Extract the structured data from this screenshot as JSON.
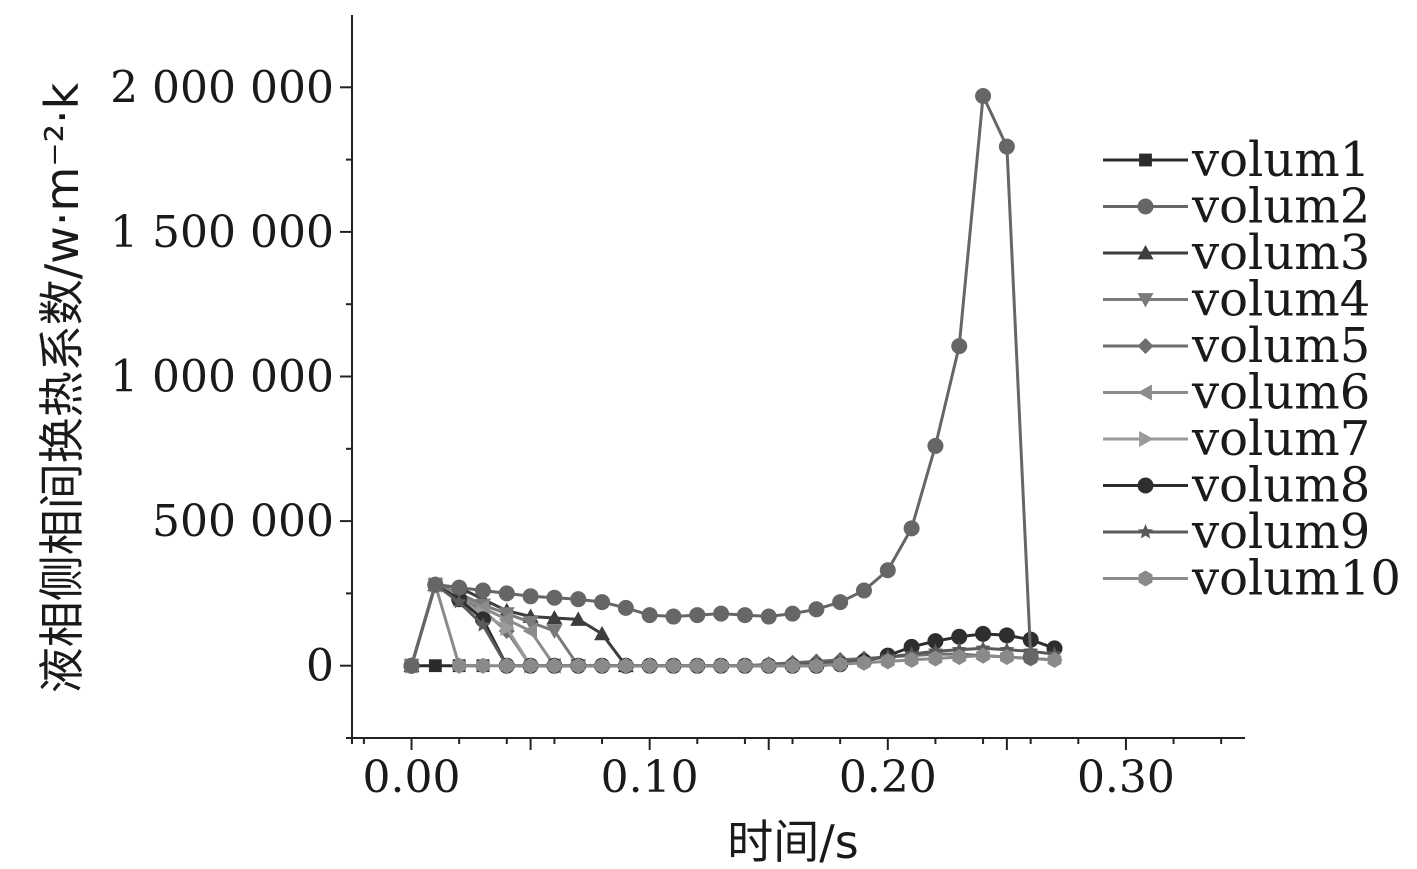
{
  "chart_data": {
    "type": "line",
    "title": "",
    "xlabel": "时间/s",
    "ylabel": "液相侧相间换热系数/w·m⁻²·k",
    "xlim": [
      -0.025,
      0.35
    ],
    "ylim": [
      -250000,
      2250000
    ],
    "x_ticks": [
      0.0,
      0.1,
      0.2,
      0.3
    ],
    "x_tick_labels": [
      "0.00",
      "0.10",
      "0.20",
      "0.30"
    ],
    "y_ticks": [
      0,
      500000,
      1000000,
      1500000,
      2000000
    ],
    "y_tick_labels": [
      "0",
      "500 000",
      "1 000 000",
      "1 500 000",
      "2 000 000"
    ],
    "legend_position": "right",
    "series": [
      {
        "name": "volum1",
        "marker": "square",
        "color": "#2b2b2b",
        "x": [
          0.0,
          0.01,
          0.02,
          0.03
        ],
        "y": [
          0,
          0,
          0,
          0
        ]
      },
      {
        "name": "volum2",
        "marker": "circle",
        "color": "#666666",
        "x": [
          0.0,
          0.01,
          0.02,
          0.03,
          0.04,
          0.05,
          0.06,
          0.07,
          0.08,
          0.09,
          0.1,
          0.11,
          0.12,
          0.13,
          0.14,
          0.15,
          0.16,
          0.17,
          0.18,
          0.19,
          0.2,
          0.21,
          0.22,
          0.23,
          0.24,
          0.25,
          0.26
        ],
        "y": [
          0,
          280000,
          270000,
          260000,
          250000,
          240000,
          235000,
          230000,
          220000,
          200000,
          175000,
          170000,
          175000,
          180000,
          175000,
          170000,
          180000,
          195000,
          220000,
          260000,
          330000,
          475000,
          760000,
          1105000,
          1970000,
          1795000,
          30000
        ]
      },
      {
        "name": "volum3",
        "marker": "triangle-up",
        "color": "#3d3d3d",
        "x": [
          0.0,
          0.01,
          0.02,
          0.03,
          0.04,
          0.05,
          0.06,
          0.07,
          0.08,
          0.09
        ],
        "y": [
          0,
          280000,
          270000,
          230000,
          190000,
          170000,
          165000,
          160000,
          110000,
          0
        ]
      },
      {
        "name": "volum4",
        "marker": "triangle-down",
        "color": "#7a7a7a",
        "x": [
          0.0,
          0.01,
          0.02,
          0.03,
          0.04,
          0.05,
          0.06,
          0.07
        ],
        "y": [
          0,
          280000,
          250000,
          210000,
          180000,
          150000,
          120000,
          0
        ]
      },
      {
        "name": "volum5",
        "marker": "diamond",
        "color": "#6e6e6e",
        "x": [
          0.0,
          0.01,
          0.02,
          0.03,
          0.04,
          0.05,
          0.06,
          0.07,
          0.08,
          0.09,
          0.1,
          0.11,
          0.12,
          0.13,
          0.14,
          0.15,
          0.16,
          0.17,
          0.18,
          0.19,
          0.2,
          0.21,
          0.22,
          0.23,
          0.24,
          0.25,
          0.26,
          0.27
        ],
        "y": [
          0,
          280000,
          240000,
          190000,
          120000,
          0,
          0,
          0,
          0,
          0,
          0,
          0,
          0,
          0,
          0,
          5000,
          10000,
          15000,
          20000,
          25000,
          30000,
          35000,
          40000,
          40000,
          35000,
          30000,
          25000,
          20000
        ]
      },
      {
        "name": "volum6",
        "marker": "triangle-left",
        "color": "#8c8c8c",
        "x": [
          0.0,
          0.01,
          0.02,
          0.03,
          0.04,
          0.05,
          0.06
        ],
        "y": [
          0,
          280000,
          240000,
          200000,
          160000,
          120000,
          0
        ]
      },
      {
        "name": "volum7",
        "marker": "triangle-right",
        "color": "#9a9a9a",
        "x": [
          0.0,
          0.01,
          0.02,
          0.03,
          0.04,
          0.05
        ],
        "y": [
          0,
          280000,
          230000,
          180000,
          130000,
          0
        ]
      },
      {
        "name": "volum8",
        "marker": "circle",
        "color": "#2e2e2e",
        "x": [
          0.0,
          0.01,
          0.02,
          0.03,
          0.04,
          0.05,
          0.06,
          0.07,
          0.08,
          0.09,
          0.1,
          0.11,
          0.12,
          0.13,
          0.14,
          0.15,
          0.16,
          0.17,
          0.18,
          0.19,
          0.2,
          0.21,
          0.22,
          0.23,
          0.24,
          0.25,
          0.26,
          0.27
        ],
        "y": [
          0,
          280000,
          230000,
          160000,
          0,
          0,
          0,
          0,
          0,
          0,
          0,
          0,
          0,
          0,
          0,
          0,
          0,
          0,
          5000,
          15000,
          35000,
          65000,
          85000,
          100000,
          110000,
          105000,
          90000,
          60000
        ]
      },
      {
        "name": "volum9",
        "marker": "star",
        "color": "#5a5a5a",
        "x": [
          0.0,
          0.01,
          0.02,
          0.03,
          0.04,
          0.05,
          0.06,
          0.07,
          0.08,
          0.09,
          0.1,
          0.11,
          0.12,
          0.13,
          0.14,
          0.15,
          0.16,
          0.17,
          0.18,
          0.19,
          0.2,
          0.21,
          0.22,
          0.23,
          0.24,
          0.25,
          0.26,
          0.27
        ],
        "y": [
          0,
          280000,
          220000,
          140000,
          0,
          0,
          0,
          0,
          0,
          0,
          0,
          0,
          0,
          0,
          0,
          0,
          5000,
          10000,
          15000,
          20000,
          30000,
          40000,
          50000,
          55000,
          60000,
          55000,
          50000,
          40000
        ]
      },
      {
        "name": "volum10",
        "marker": "hexagon",
        "color": "#8a8a8a",
        "x": [
          0.0,
          0.01,
          0.02,
          0.03,
          0.04,
          0.05,
          0.06,
          0.07,
          0.08,
          0.09,
          0.1,
          0.11,
          0.12,
          0.13,
          0.14,
          0.15,
          0.16,
          0.17,
          0.18,
          0.19,
          0.2,
          0.21,
          0.22,
          0.23,
          0.24,
          0.25,
          0.26,
          0.27
        ],
        "y": [
          0,
          280000,
          0,
          0,
          0,
          0,
          0,
          0,
          0,
          0,
          0,
          0,
          0,
          0,
          0,
          0,
          0,
          0,
          5000,
          10000,
          15000,
          20000,
          25000,
          30000,
          35000,
          30000,
          25000,
          20000
        ]
      }
    ]
  }
}
